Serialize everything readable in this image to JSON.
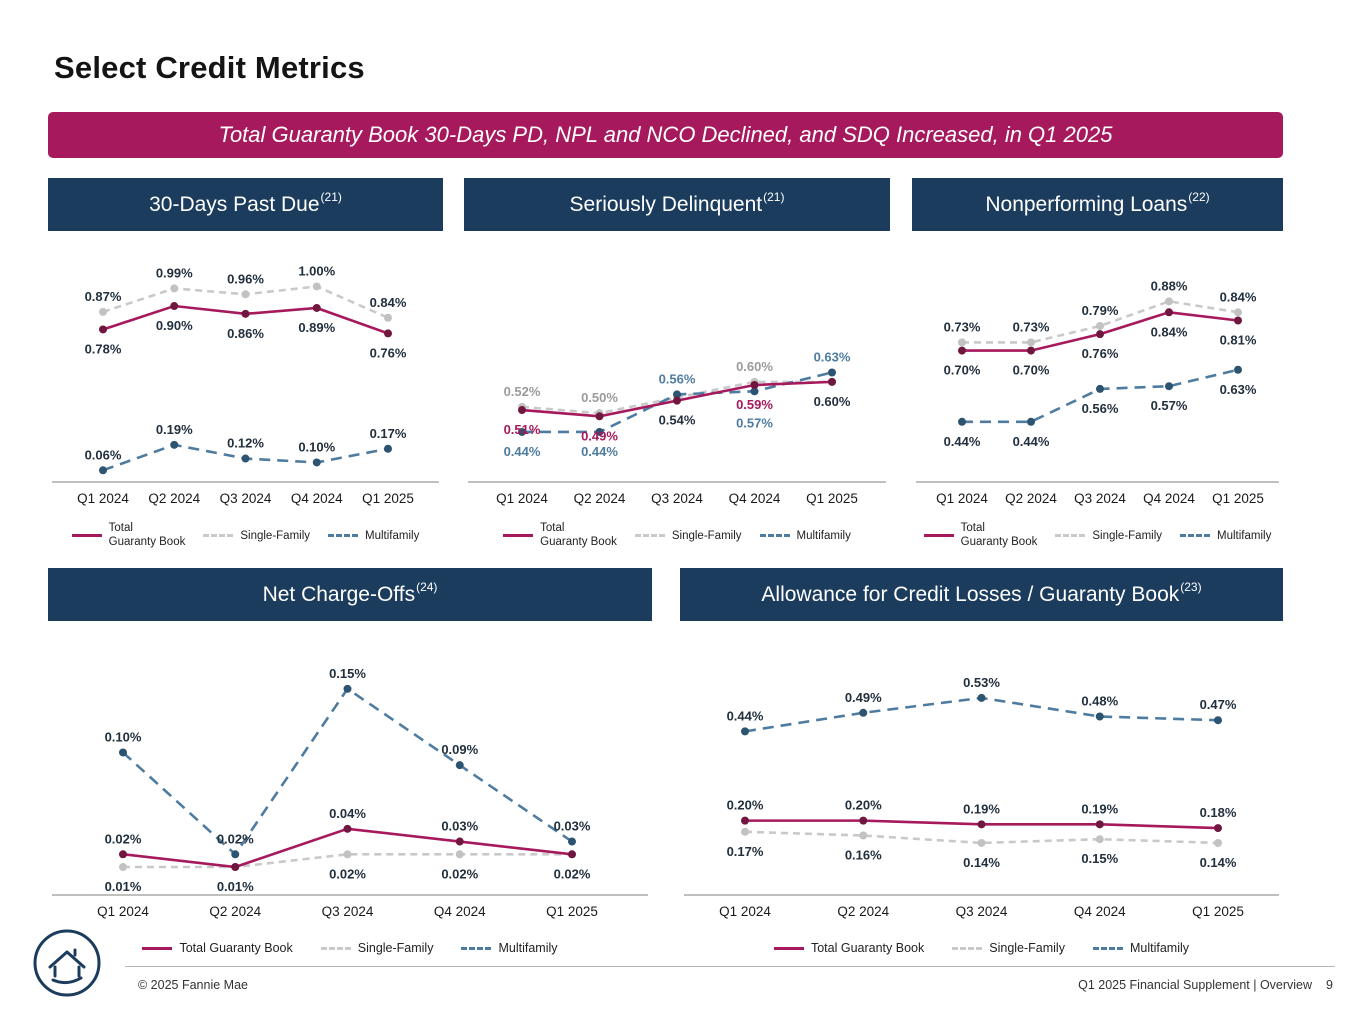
{
  "page": {
    "title": "Select Credit Metrics",
    "banner": "Total Guaranty Book 30-Days PD, NPL and NCO Declined, and SDQ Increased, in Q1 2025"
  },
  "colors": {
    "magenta": "#A6195C",
    "navy": "#1B3C5C",
    "gray": "#C9C9C9",
    "blue": "#4E7CA1",
    "label_dark": "#22303E",
    "gray_label": "#9B9B9B",
    "magenta_marker": "#70173F",
    "blue_marker": "#2C536F",
    "gray_marker": "#C2C2C2",
    "axis": "#9B9B9B",
    "footer_text": "#333333"
  },
  "legend": {
    "total": "Total Guaranty Book",
    "total_line1": "Total",
    "total_line2": "Guaranty Book",
    "single": "Single-Family",
    "multi": "Multifamily"
  },
  "footer": {
    "copyright": "© 2025 Fannie Mae",
    "right_label": "Q1 2025 Financial Supplement | Overview",
    "page_number": "9"
  },
  "chart_data": [
    {
      "type": "line",
      "title": "30-Days Past Due",
      "sup": "(21)",
      "categories": [
        "Q1 2024",
        "Q2 2024",
        "Q3 2024",
        "Q4 2024",
        "Q1 2025"
      ],
      "ylim": [
        0,
        1.12
      ],
      "xlabel": "",
      "ylabel": "",
      "series": [
        {
          "name": "Single-Family",
          "color": "gray",
          "marker": "gray_marker",
          "dash": "7 5",
          "values": [
            0.87,
            0.99,
            0.96,
            1.0,
            0.84
          ],
          "label_pos": "above",
          "label_color": "label_dark"
        },
        {
          "name": "Multifamily",
          "color": "blue",
          "marker": "blue_marker",
          "dash": "11 7",
          "values": [
            0.06,
            0.19,
            0.12,
            0.1,
            0.17
          ],
          "label_pos": "above",
          "label_color": "label_dark"
        },
        {
          "name": "Total Guaranty Book",
          "color": "magenta",
          "marker": "magenta_marker",
          "values": [
            0.78,
            0.9,
            0.86,
            0.89,
            0.76
          ],
          "label_pos": "below",
          "label_color": "label_dark"
        }
      ]
    },
    {
      "type": "line",
      "title": "Seriously Delinquent",
      "sup": "(21)",
      "categories": [
        "Q1 2024",
        "Q2 2024",
        "Q3 2024",
        "Q4 2024",
        "Q1 2025"
      ],
      "ylim": [
        0.28,
        0.98
      ],
      "xlabel": "",
      "ylabel": "",
      "series": [
        {
          "name": "Single-Family",
          "color": "gray",
          "marker": "gray_marker",
          "dash": "7 5",
          "values": [
            0.52,
            0.5,
            0.55,
            0.6,
            0.6
          ],
          "label_pos": "above",
          "label_color": "gray_label",
          "show_labels": [
            true,
            true,
            false,
            true,
            false
          ]
        },
        {
          "name": "Multifamily",
          "color": "blue",
          "marker": "blue_marker",
          "dash": "11 7",
          "values": [
            0.44,
            0.44,
            0.56,
            0.57,
            0.63
          ],
          "label_pos": [
            "below",
            "below",
            "above",
            "below",
            "above"
          ],
          "label_color": "blue",
          "label_dy": [
            0,
            0,
            0,
            12,
            0
          ]
        },
        {
          "name": "Total Guaranty Book",
          "color": "magenta",
          "marker": "magenta_marker",
          "values": [
            0.51,
            0.49,
            0.54,
            0.59,
            0.6
          ],
          "label_pos": "below",
          "label_color": [
            "magenta",
            "magenta",
            "label_dark",
            "magenta",
            "label_dark"
          ]
        }
      ]
    },
    {
      "type": "line",
      "title": "Nonperforming Loans",
      "sup": "(22)",
      "categories": [
        "Q1 2024",
        "Q2 2024",
        "Q3 2024",
        "Q4 2024",
        "Q1 2025"
      ],
      "ylim": [
        0.22,
        1.02
      ],
      "xlabel": "",
      "ylabel": "",
      "series": [
        {
          "name": "Single-Family",
          "color": "gray",
          "marker": "gray_marker",
          "dash": "7 5",
          "values": [
            0.73,
            0.73,
            0.79,
            0.88,
            0.84
          ],
          "label_pos": "above",
          "label_color": "label_dark"
        },
        {
          "name": "Multifamily",
          "color": "blue",
          "marker": "blue_marker",
          "dash": "11 7",
          "values": [
            0.44,
            0.44,
            0.56,
            0.57,
            0.63
          ],
          "label_pos": "below",
          "label_color": "label_dark"
        },
        {
          "name": "Total Guaranty Book",
          "color": "magenta",
          "marker": "magenta_marker",
          "values": [
            0.7,
            0.7,
            0.76,
            0.84,
            0.81
          ],
          "label_pos": "below",
          "label_color": "label_dark"
        }
      ]
    },
    {
      "type": "line",
      "title": "Net Charge-Offs",
      "sup": "(24)",
      "categories": [
        "Q1 2024",
        "Q2 2024",
        "Q3 2024",
        "Q4 2024",
        "Q1 2025"
      ],
      "ylim": [
        -0.012,
        0.175
      ],
      "xlabel": "",
      "ylabel": "",
      "series": [
        {
          "name": "Single-Family",
          "color": "gray",
          "marker": "gray_marker",
          "dash": "7 5",
          "values": [
            0.01,
            0.01,
            0.02,
            0.02,
            0.02
          ],
          "label_pos": "below",
          "label_color": "label_dark",
          "show_labels": [
            true,
            false,
            true,
            true,
            false
          ]
        },
        {
          "name": "Multifamily",
          "color": "blue",
          "marker": "blue_marker",
          "dash": "11 7",
          "values": [
            0.1,
            0.02,
            0.15,
            0.09,
            0.03
          ],
          "label_pos": "above",
          "label_color": "label_dark"
        },
        {
          "name": "Total Guaranty Book",
          "color": "magenta",
          "marker": "magenta_marker",
          "values": [
            0.02,
            0.01,
            0.04,
            0.03,
            0.02
          ],
          "label_pos": [
            "above",
            "below",
            "above",
            "above",
            "below"
          ],
          "label_color": "label_dark"
        }
      ]
    },
    {
      "type": "line",
      "title": "Allowance for Credit Losses / Guaranty Book",
      "sup": "(23)",
      "categories": [
        "Q1 2024",
        "Q2 2024",
        "Q3 2024",
        "Q4 2024",
        "Q1 2025"
      ],
      "ylim": [
        0,
        0.64
      ],
      "xlabel": "",
      "ylabel": "",
      "series": [
        {
          "name": "Single-Family",
          "color": "gray",
          "marker": "gray_marker",
          "dash": "7 5",
          "values": [
            0.17,
            0.16,
            0.14,
            0.15,
            0.14
          ],
          "label_pos": "below",
          "label_color": "label_dark"
        },
        {
          "name": "Multifamily",
          "color": "blue",
          "marker": "blue_marker",
          "dash": "11 7",
          "values": [
            0.44,
            0.49,
            0.53,
            0.48,
            0.47
          ],
          "label_pos": "above",
          "label_color": "label_dark"
        },
        {
          "name": "Total Guaranty Book",
          "color": "magenta",
          "marker": "magenta_marker",
          "values": [
            0.2,
            0.2,
            0.19,
            0.19,
            0.18
          ],
          "label_pos": "above",
          "label_color": "label_dark"
        }
      ]
    }
  ]
}
